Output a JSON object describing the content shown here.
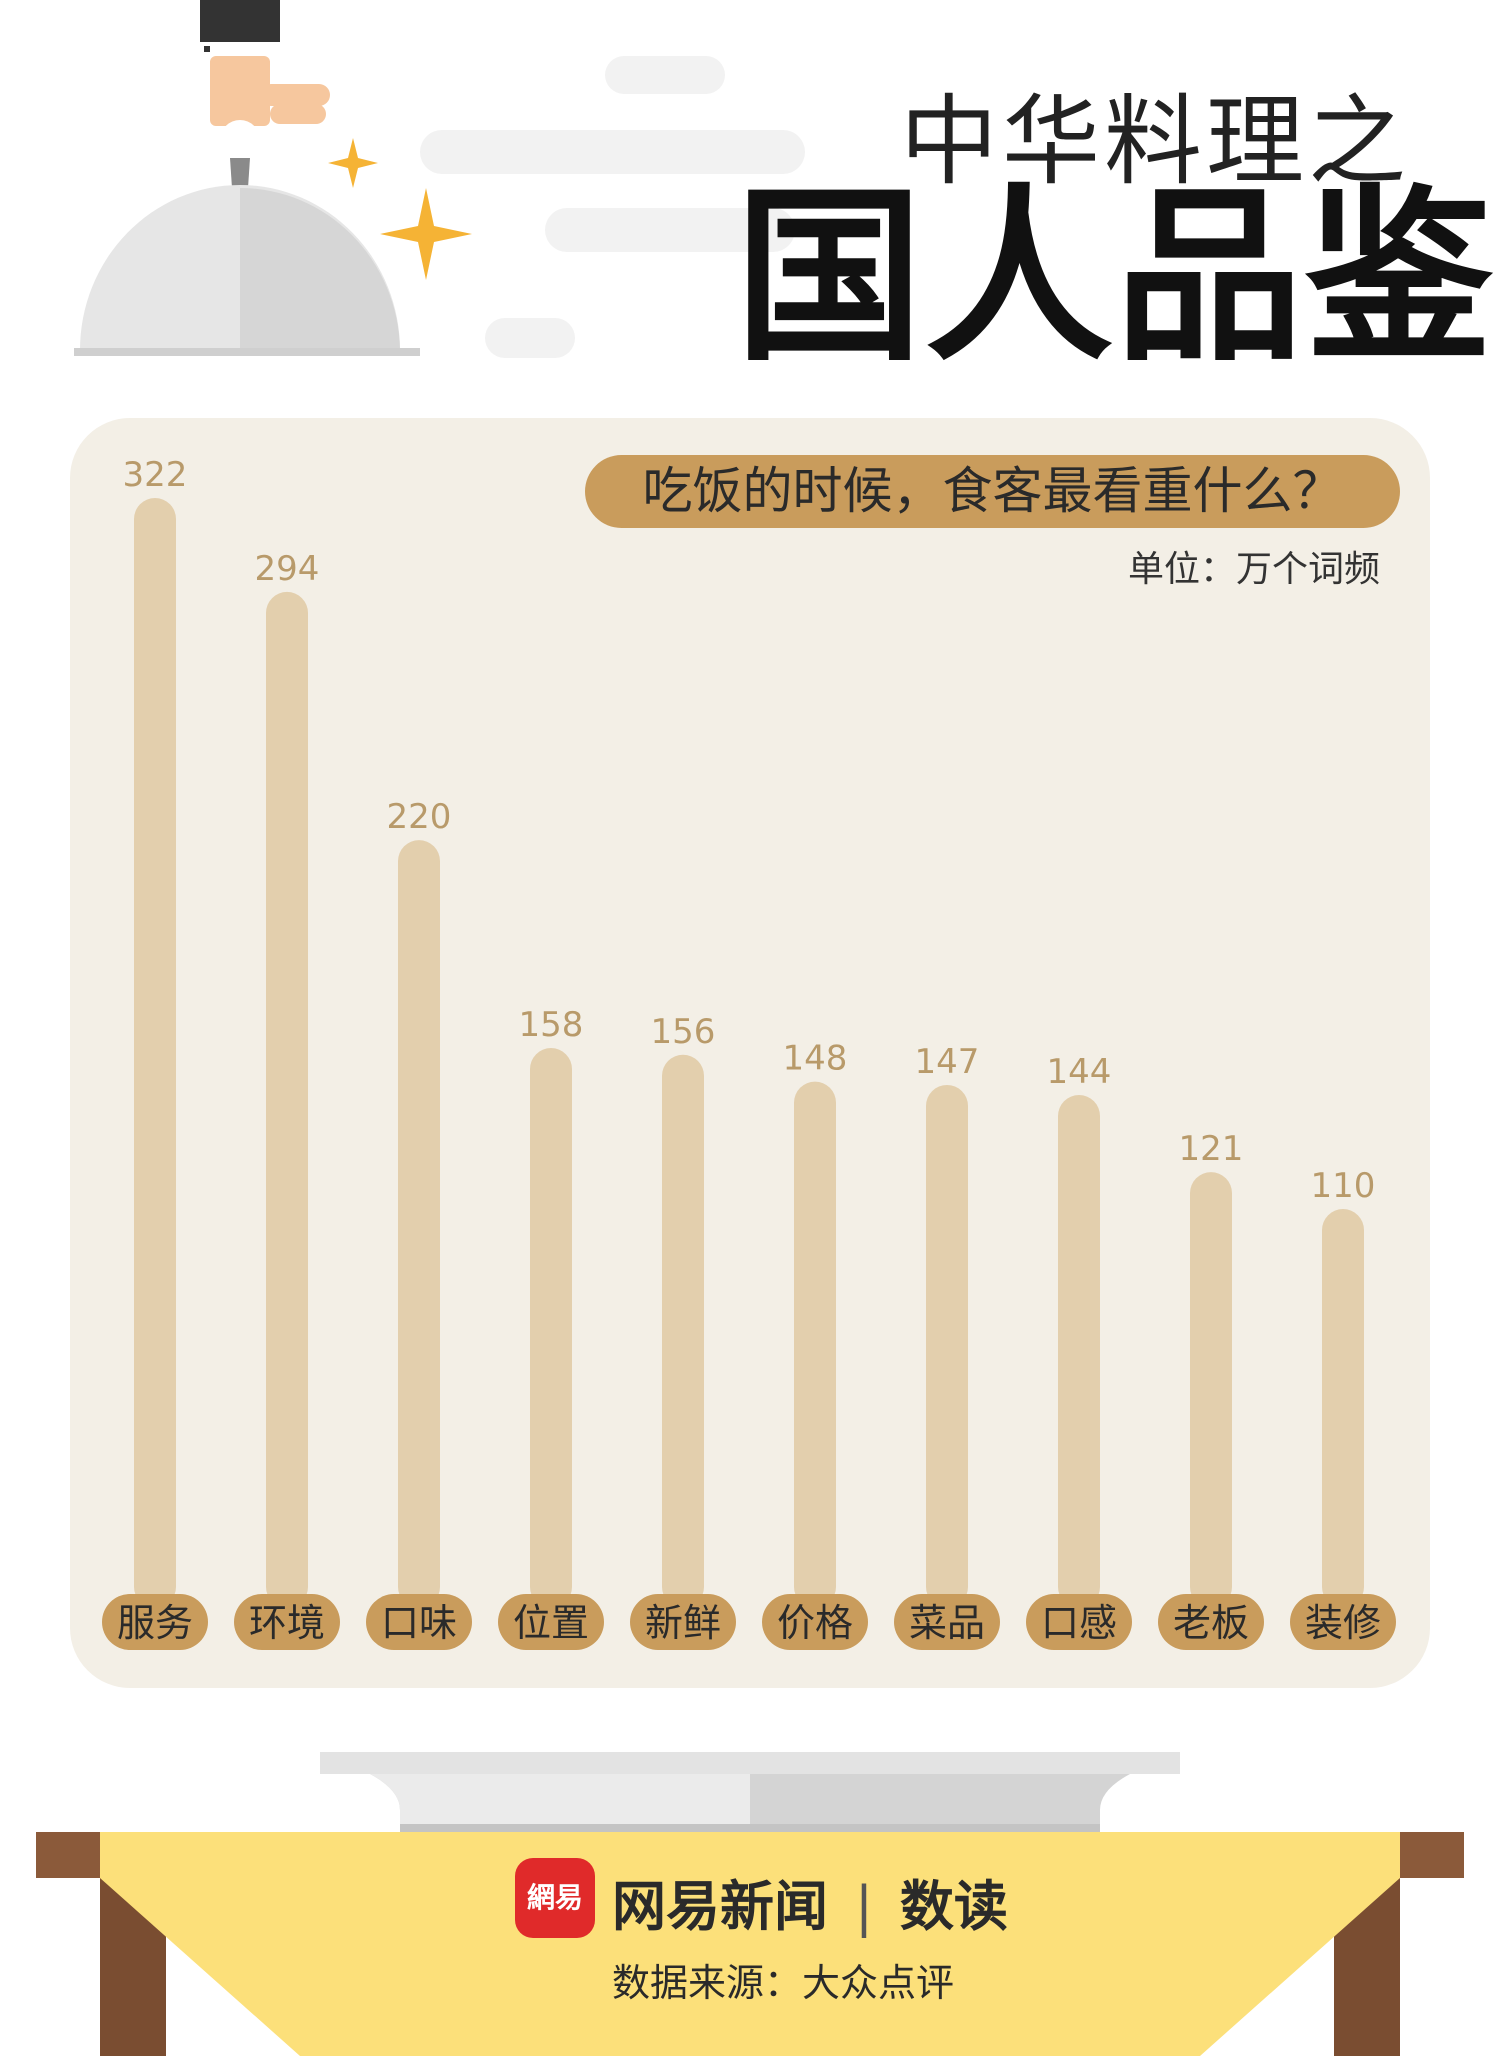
{
  "header": {
    "subtitle": "中华料理之",
    "title": "国人品鉴"
  },
  "chart_data": {
    "type": "bar",
    "title": "吃饭的时候，食客最看重什么？",
    "unit": "单位：万个词频",
    "categories": [
      "服务",
      "环境",
      "口味",
      "位置",
      "新鲜",
      "价格",
      "菜品",
      "口感",
      "老板",
      "装修"
    ],
    "values": [
      322,
      294,
      220,
      158,
      156,
      148,
      147,
      144,
      121,
      110
    ],
    "ylim": [
      0,
      322
    ],
    "grid": false,
    "colors": {
      "bar": "#e3cfad",
      "value_label": "#b89a6a",
      "category_pill": "#c99c5c",
      "panel": "#f3efe6"
    }
  },
  "footer": {
    "logo_text": "網易",
    "brand": "网易新闻",
    "separator": "|",
    "product": "数读",
    "source": "数据来源：大众点评"
  },
  "colors": {
    "accent": "#c99c5c",
    "sparkle": "#f5b335",
    "table": "#8b5a3a",
    "cloth": "#fce07a",
    "logo": "#e02a2a"
  }
}
